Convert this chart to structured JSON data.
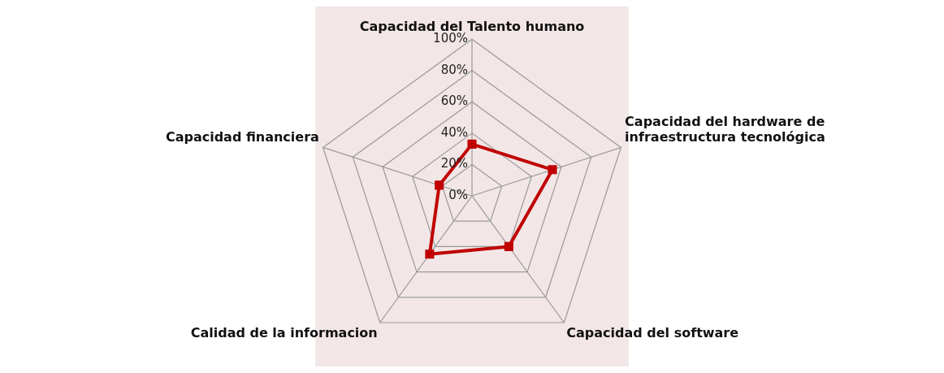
{
  "chart_data": {
    "type": "radar",
    "categories": [
      "Capacidad del Talento humano",
      "Capacidad del hardware de infraestructura tecnológica",
      "Capacidad del software",
      "Calidad de la informacion",
      "Capacidad financiera"
    ],
    "series": [
      {
        "color": "#c00000",
        "values": [
          33,
          54,
          40,
          46,
          22
        ]
      }
    ],
    "ylim": [
      0,
      100
    ],
    "yticks": [
      {
        "value": 0,
        "label": "0%"
      },
      {
        "value": 20,
        "label": "20%"
      },
      {
        "value": 40,
        "label": "40%"
      },
      {
        "value": 60,
        "label": "60%"
      },
      {
        "value": 80,
        "label": "80%"
      },
      {
        "value": 100,
        "label": "100%"
      }
    ],
    "grid": true,
    "marker": "square",
    "legend": false
  }
}
